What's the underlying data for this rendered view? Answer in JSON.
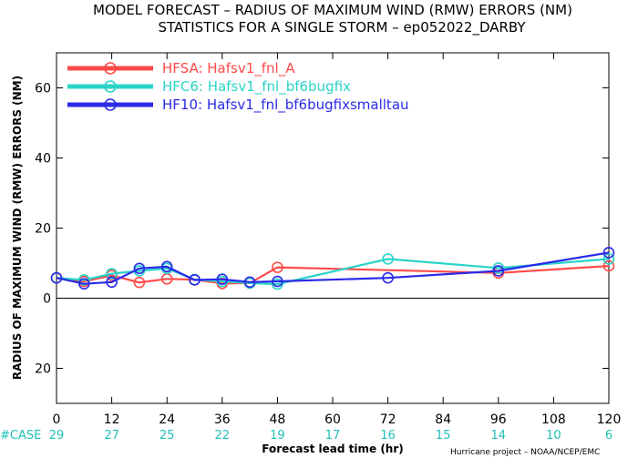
{
  "chart_data": {
    "type": "line",
    "title_line1": "MODEL FORECAST – RADIUS OF MAXIMUM WIND (RMW) ERRORS (NM)",
    "title_line2": "STATISTICS FOR A SINGLE STORM – ep052022_DARBY",
    "xlabel": "Forecast lead time (hr)",
    "ylabel": "RADIUS OF MAXIMUM WIND (RMW) ERRORS (NM)",
    "xlim": [
      0,
      120
    ],
    "ylim": [
      -30,
      70
    ],
    "xticks": [
      0,
      12,
      24,
      36,
      48,
      60,
      72,
      84,
      96,
      108,
      120
    ],
    "yticks": [
      -20,
      0,
      20,
      40,
      60
    ],
    "ytick_labels": [
      "20",
      "0",
      "20",
      "40",
      "60"
    ],
    "grid": false,
    "legend_position": "top-left",
    "series": [
      {
        "name": "HFSA:",
        "label": "Hafsv1_fnl_A",
        "color": "#ff4a4a",
        "x": [
          0,
          6,
          12,
          18,
          24,
          30,
          36,
          42,
          48,
          96,
          120
        ],
        "y": [
          5.8,
          4.8,
          6.5,
          4.5,
          5.5,
          5.3,
          4.2,
          4.3,
          8.8,
          7.2,
          9.2
        ]
      },
      {
        "name": "HFC6:",
        "label": "Hafsv1_fnl_bf6bugfix",
        "color": "#2ad4c8",
        "x": [
          0,
          6,
          12,
          18,
          24,
          30,
          36,
          42,
          48,
          72,
          96,
          120
        ],
        "y": [
          5.8,
          5.2,
          7.0,
          7.8,
          8.5,
          5.3,
          4.8,
          4.3,
          4.0,
          11.2,
          8.6,
          11.2
        ]
      },
      {
        "name": "HF10:",
        "label": "Hafsv1_fnl_bf6bugfixsmalltau",
        "color": "#2a2ae8",
        "x": [
          0,
          6,
          12,
          18,
          24,
          30,
          36,
          42,
          48,
          72,
          96,
          120
        ],
        "y": [
          5.8,
          4.1,
          4.6,
          8.5,
          9.0,
          5.2,
          5.4,
          4.6,
          4.8,
          5.8,
          7.8,
          13.0
        ]
      }
    ],
    "case_label": "#CASE",
    "case_counts": [
      {
        "x": 0,
        "label": "29"
      },
      {
        "x": 12,
        "label": "27"
      },
      {
        "x": 24,
        "label": "25"
      },
      {
        "x": 36,
        "label": "22"
      },
      {
        "x": 48,
        "label": "19"
      },
      {
        "x": 60,
        "label": "17"
      },
      {
        "x": 72,
        "label": "16"
      },
      {
        "x": 84,
        "label": "15"
      },
      {
        "x": 96,
        "label": "14"
      },
      {
        "x": 108,
        "label": "10"
      },
      {
        "x": 120,
        "label": "6"
      }
    ],
    "case_color": "#1fbfb5",
    "credit": "Hurricane project – NOAA/NCEP/EMC"
  }
}
